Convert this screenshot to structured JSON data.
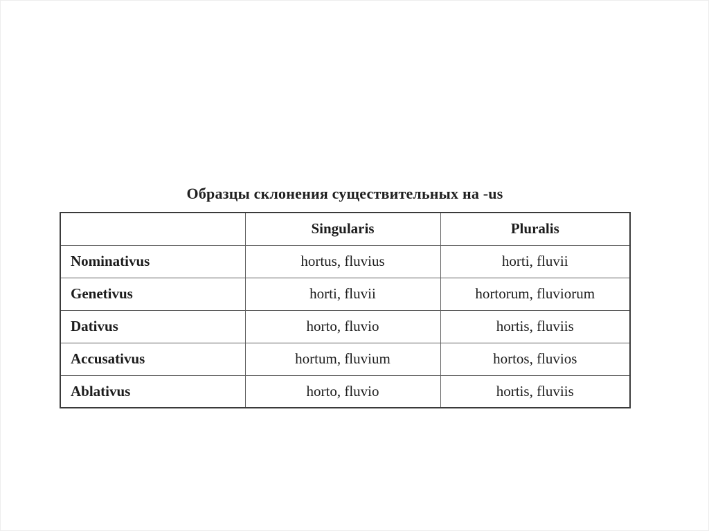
{
  "page": {
    "background": "#ffffff",
    "edge_border_color": "#ededed"
  },
  "title": "Образцы склонения существительных на -us",
  "table": {
    "corner_cell": "",
    "columns": [
      "Singularis",
      "Pluralis"
    ],
    "rows": [
      {
        "case": "Nominativus",
        "singularis": "hortus, fluvius",
        "pluralis": "horti, fluvii"
      },
      {
        "case": "Genetivus",
        "singularis": "horti, fluvii",
        "pluralis": "hortorum, fluviorum"
      },
      {
        "case": "Dativus",
        "singularis": "horto, fluvio",
        "pluralis": "hortis, fluviis"
      },
      {
        "case": "Accusativus",
        "singularis": "hortum, fluvium",
        "pluralis": "hortos, fluvios"
      },
      {
        "case": "Ablativus",
        "singularis": "horto, fluvio",
        "pluralis": "hortis, fluviis"
      }
    ],
    "colors": {
      "outer_border": "#3a3a3a",
      "inner_border": "#5f5f5f",
      "text": "#1c1c1c"
    }
  }
}
